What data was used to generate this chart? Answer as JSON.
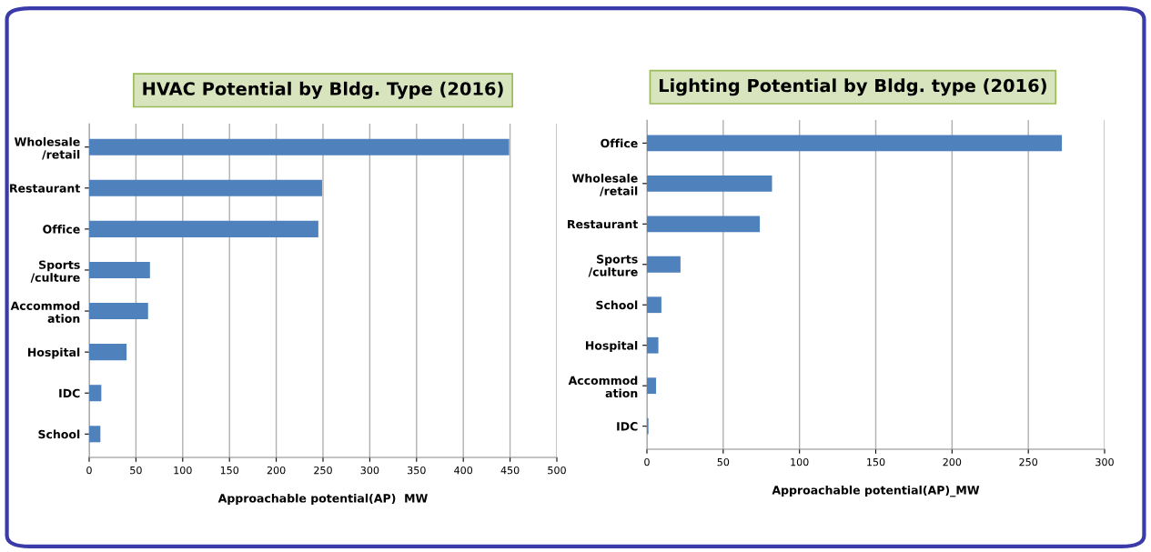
{
  "chart_data": [
    {
      "type": "bar",
      "orientation": "horizontal",
      "title": "HVAC Potential by Bldg. Type (2016)",
      "xlabel": "Approachable potential(AP)  MW",
      "categories": [
        "Wholesale\n/retail",
        "Restaurant",
        "Office",
        "Sports\n/culture",
        "Accommod\nation",
        "Hospital",
        "IDC",
        "School"
      ],
      "values": [
        449,
        249,
        245,
        65,
        63,
        40,
        13,
        12
      ],
      "color": "#4f81bd",
      "xlim": [
        0,
        500
      ],
      "xticks": [
        0,
        50,
        100,
        150,
        200,
        250,
        300,
        350,
        400,
        450,
        500
      ],
      "grid": "x"
    },
    {
      "type": "bar",
      "orientation": "horizontal",
      "title": "Lighting Potential by Bldg. type (2016)",
      "xlabel": "Approachable potential(AP)_MW",
      "categories": [
        "Office",
        "Wholesale\n/retail",
        "Restaurant",
        "Sports\n/culture",
        "School",
        "Hospital",
        "Accommod\nation",
        "IDC"
      ],
      "values": [
        272,
        82,
        74,
        22,
        9.5,
        7.5,
        6,
        1
      ],
      "color": "#4f81bd",
      "xlim": [
        0,
        300
      ],
      "xticks": [
        0,
        50,
        100,
        150,
        200,
        250,
        300
      ],
      "grid": "x"
    }
  ]
}
